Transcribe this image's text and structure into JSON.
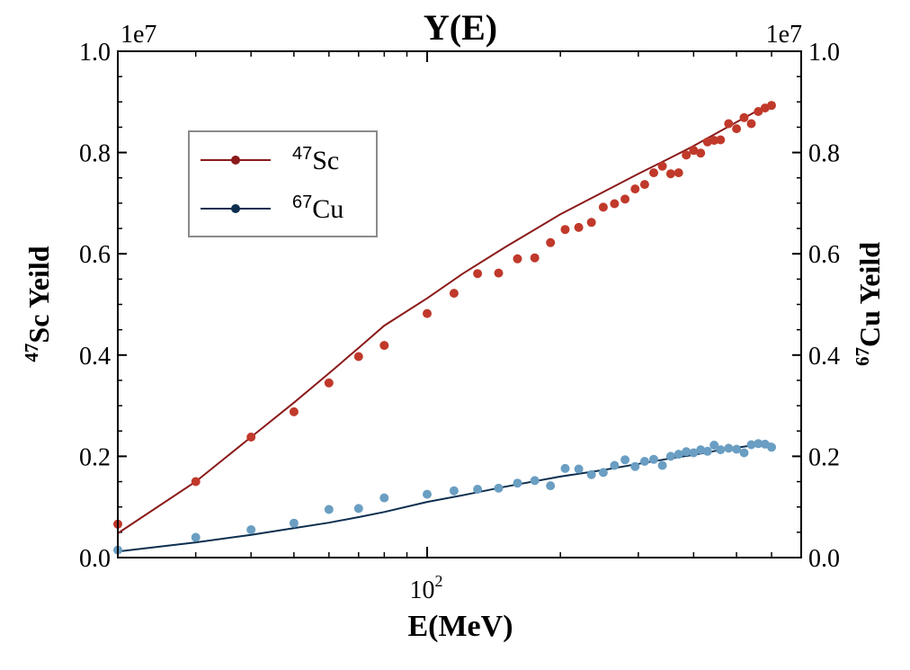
{
  "chart_data": {
    "type": "scatter",
    "title": "Y(E)",
    "xlabel": "E(MeV)",
    "ylabel_left_sup": "47",
    "ylabel_left_main": "Sc Yeild",
    "ylabel_right_sup": "67",
    "ylabel_right_main": "Cu Yeild",
    "x_scale": "log",
    "x_tick_label": "10",
    "x_tick_label_exp": "2",
    "x_tick_value": 100,
    "xlim": [
      20,
      700
    ],
    "ylim": [
      0,
      1.0
    ],
    "y_multiplier": "1e7",
    "y_ticks": [
      "0.0",
      "0.2",
      "0.4",
      "0.6",
      "0.8",
      "1.0"
    ],
    "legend_position": "upper-left",
    "series": [
      {
        "name_sup": "47",
        "name_main": "Sc",
        "marker_color": "#c0392b",
        "line_color": "#8b1a1a",
        "points": [
          [
            20,
            0.066
          ],
          [
            30,
            0.15
          ],
          [
            40,
            0.238
          ],
          [
            50,
            0.288
          ],
          [
            60,
            0.345
          ],
          [
            70,
            0.397
          ],
          [
            80,
            0.419
          ],
          [
            100,
            0.482
          ],
          [
            115,
            0.522
          ],
          [
            130,
            0.561
          ],
          [
            145,
            0.562
          ],
          [
            160,
            0.59
          ],
          [
            175,
            0.592
          ],
          [
            190,
            0.622
          ],
          [
            205,
            0.648
          ],
          [
            220,
            0.652
          ],
          [
            235,
            0.662
          ],
          [
            250,
            0.692
          ],
          [
            265,
            0.699
          ],
          [
            280,
            0.708
          ],
          [
            295,
            0.728
          ],
          [
            310,
            0.737
          ],
          [
            325,
            0.76
          ],
          [
            340,
            0.773
          ],
          [
            355,
            0.758
          ],
          [
            370,
            0.76
          ],
          [
            385,
            0.795
          ],
          [
            400,
            0.804
          ],
          [
            415,
            0.799
          ],
          [
            430,
            0.821
          ],
          [
            445,
            0.824
          ],
          [
            460,
            0.825
          ],
          [
            480,
            0.857
          ],
          [
            500,
            0.847
          ],
          [
            520,
            0.869
          ],
          [
            540,
            0.857
          ],
          [
            560,
            0.881
          ],
          [
            580,
            0.888
          ],
          [
            600,
            0.893
          ]
        ],
        "fit": [
          [
            20,
            0.048
          ],
          [
            30,
            0.15
          ],
          [
            40,
            0.238
          ],
          [
            50,
            0.306
          ],
          [
            60,
            0.364
          ],
          [
            70,
            0.414
          ],
          [
            80,
            0.458
          ],
          [
            100,
            0.512
          ],
          [
            120,
            0.56
          ],
          [
            150,
            0.613
          ],
          [
            200,
            0.678
          ],
          [
            250,
            0.722
          ],
          [
            300,
            0.758
          ],
          [
            350,
            0.787
          ],
          [
            400,
            0.813
          ],
          [
            450,
            0.838
          ],
          [
            500,
            0.86
          ],
          [
            550,
            0.88
          ],
          [
            600,
            0.895
          ]
        ]
      },
      {
        "name_sup": "67",
        "name_main": "Cu",
        "marker_color": "#6a9ec2",
        "line_color": "#0d2f4f",
        "points": [
          [
            20,
            0.015
          ],
          [
            30,
            0.04
          ],
          [
            40,
            0.055
          ],
          [
            50,
            0.068
          ],
          [
            60,
            0.095
          ],
          [
            70,
            0.097
          ],
          [
            80,
            0.118
          ],
          [
            100,
            0.125
          ],
          [
            115,
            0.132
          ],
          [
            130,
            0.135
          ],
          [
            145,
            0.137
          ],
          [
            160,
            0.147
          ],
          [
            175,
            0.152
          ],
          [
            190,
            0.142
          ],
          [
            205,
            0.176
          ],
          [
            220,
            0.175
          ],
          [
            235,
            0.164
          ],
          [
            250,
            0.168
          ],
          [
            265,
            0.182
          ],
          [
            280,
            0.193
          ],
          [
            295,
            0.18
          ],
          [
            310,
            0.19
          ],
          [
            325,
            0.194
          ],
          [
            340,
            0.182
          ],
          [
            355,
            0.2
          ],
          [
            370,
            0.204
          ],
          [
            385,
            0.209
          ],
          [
            400,
            0.207
          ],
          [
            415,
            0.213
          ],
          [
            430,
            0.21
          ],
          [
            445,
            0.222
          ],
          [
            460,
            0.213
          ],
          [
            480,
            0.216
          ],
          [
            500,
            0.214
          ],
          [
            520,
            0.207
          ],
          [
            540,
            0.223
          ],
          [
            560,
            0.225
          ],
          [
            580,
            0.224
          ],
          [
            600,
            0.218
          ]
        ],
        "fit": [
          [
            20,
            0.012
          ],
          [
            30,
            0.03
          ],
          [
            40,
            0.045
          ],
          [
            50,
            0.058
          ],
          [
            60,
            0.069
          ],
          [
            70,
            0.08
          ],
          [
            80,
            0.09
          ],
          [
            100,
            0.11
          ],
          [
            120,
            0.123
          ],
          [
            150,
            0.14
          ],
          [
            200,
            0.16
          ],
          [
            250,
            0.173
          ],
          [
            300,
            0.185
          ],
          [
            350,
            0.195
          ],
          [
            400,
            0.203
          ],
          [
            450,
            0.211
          ],
          [
            500,
            0.217
          ],
          [
            550,
            0.222
          ],
          [
            600,
            0.225
          ]
        ]
      }
    ]
  }
}
